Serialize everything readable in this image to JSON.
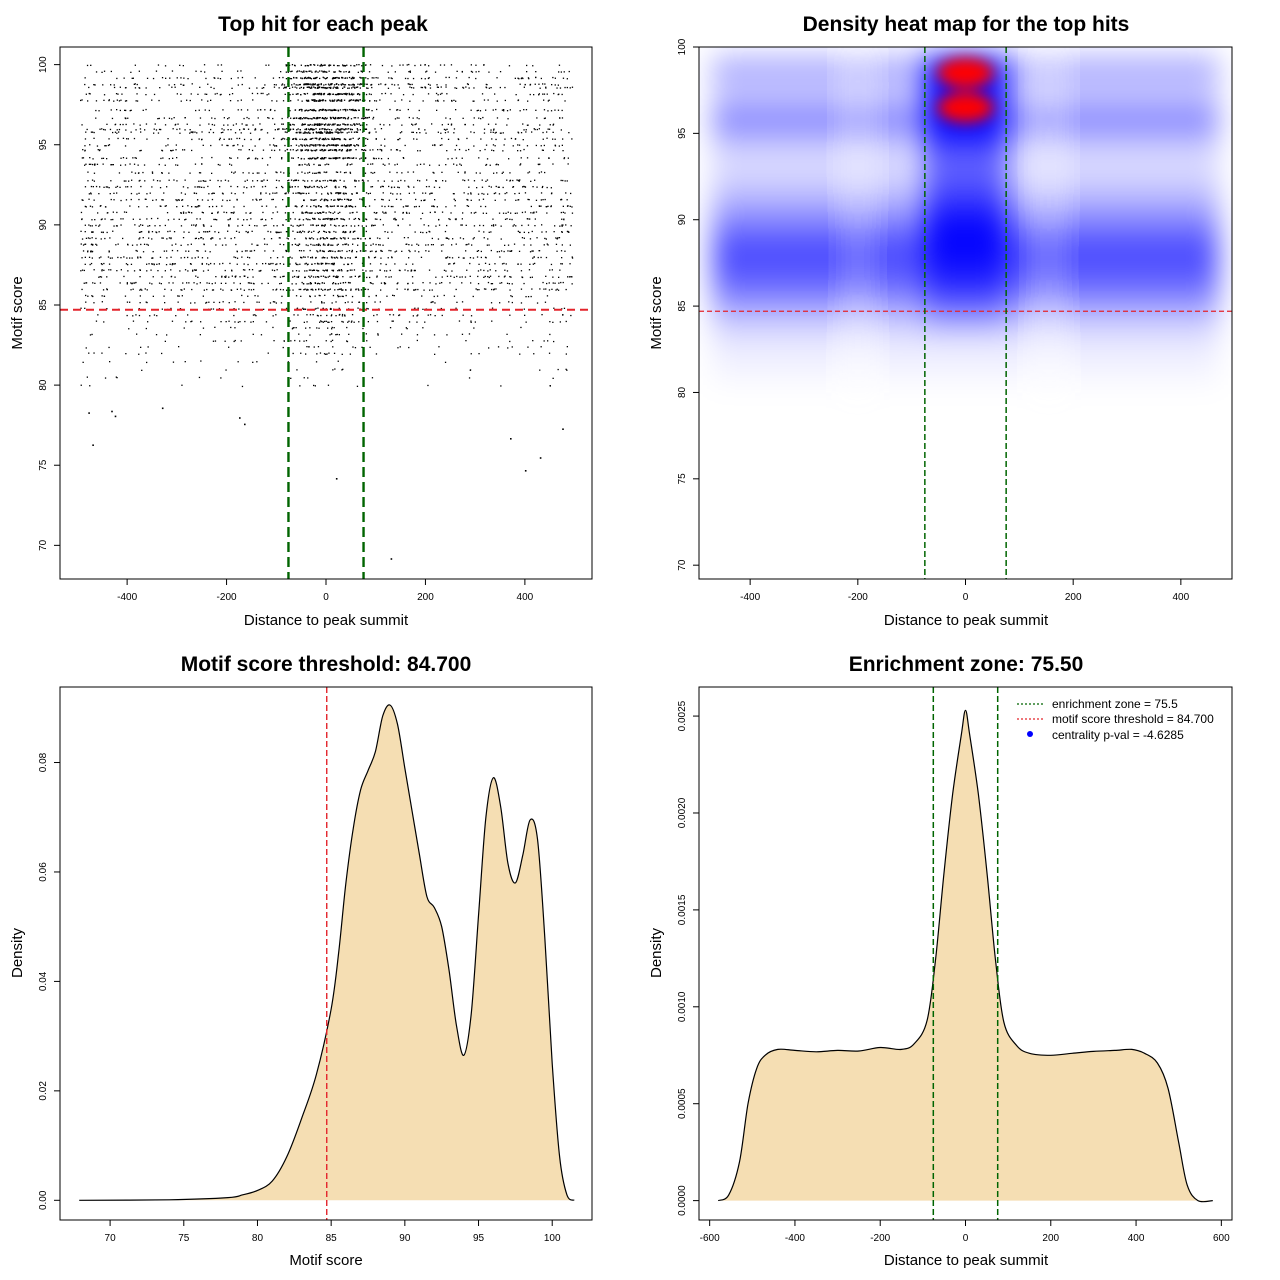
{
  "colors": {
    "threshold_line": "#e3242b",
    "zone_line": "#006400",
    "density_fill": "#f5deb3",
    "point": "#000000",
    "heat_low": "#ffffff",
    "heat_mid": "#0000ff",
    "heat_high": "#ff0000"
  },
  "chart_data": [
    {
      "id": "scatter",
      "type": "scatter",
      "title": "Top hit for each peak",
      "xlabel": "Distance to peak summit",
      "ylabel": "Motif score",
      "xlim": [
        -535,
        535
      ],
      "ylim": [
        67.9,
        101.1
      ],
      "xticks": [
        -400,
        -200,
        0,
        200,
        400
      ],
      "yticks": [
        70,
        75,
        80,
        85,
        90,
        95,
        100
      ],
      "threshold": 84.7,
      "zone": [
        -75.5,
        75.5
      ],
      "x_range": [
        -495,
        495
      ],
      "score_levels": [
        100,
        99.6,
        99.2,
        98.8,
        98.6,
        98.2,
        97.8,
        97.2,
        96.7,
        96.3,
        96.0,
        95.8,
        95.4,
        95.0,
        94.7,
        94.2,
        93.8,
        93.3,
        92.8,
        92.4,
        92.0,
        91.6,
        91.2,
        90.8,
        90.4,
        90.0,
        89.6,
        89.2,
        88.8,
        88.4,
        88.0,
        87.6,
        87.2,
        86.8,
        86.4,
        86.0,
        85.6,
        85.2,
        84.8,
        84.4,
        84.0,
        83.6,
        83.2,
        82.8,
        82.4,
        82.0,
        81.5,
        81.0,
        80.5,
        80.0,
        79.0,
        78.3,
        77.5,
        76.5,
        75.5,
        74.7,
        74.2,
        69.2
      ],
      "outliers": [
        [
          -470,
          76.3
        ],
        [
          -478,
          78.3
        ],
        [
          -432,
          78.4
        ],
        [
          -425,
          78.1
        ],
        [
          -330,
          78.6
        ],
        [
          -175,
          78.0
        ],
        [
          -165,
          77.6
        ],
        [
          20,
          74.2
        ],
        [
          130,
          69.2
        ],
        [
          370,
          76.7
        ],
        [
          400,
          74.7
        ],
        [
          430,
          75.5
        ],
        [
          475,
          77.3
        ]
      ]
    },
    {
      "id": "heatmap",
      "type": "heatmap",
      "title": "Density heat map for the top hits",
      "xlabel": "Distance to peak summit",
      "ylabel": "Motif score",
      "xlim": [
        -495,
        495
      ],
      "ylim": [
        69.2,
        100.0
      ],
      "xticks": [
        -400,
        -200,
        0,
        200,
        400
      ],
      "yticks": [
        70,
        75,
        80,
        85,
        90,
        95,
        100
      ],
      "threshold": 84.7,
      "zone": [
        -75.5,
        75.5
      ],
      "hotspots": [
        [
          0,
          98.5
        ],
        [
          0,
          96.5
        ]
      ]
    },
    {
      "id": "score-density",
      "type": "area",
      "title": "Motif score threshold: 84.700",
      "xlabel": "Motif score",
      "ylabel": "Density",
      "xlim": [
        66.6,
        102.7
      ],
      "ylim": [
        -0.0036,
        0.0938
      ],
      "xticks": [
        70,
        75,
        80,
        85,
        90,
        95,
        100
      ],
      "yticks": [
        0.0,
        0.02,
        0.04,
        0.06,
        0.08
      ],
      "ytick_labels": [
        "0.00",
        "0.02",
        "0.04",
        "0.06",
        "0.08"
      ],
      "threshold": 84.7,
      "points": [
        [
          67.9,
          0.0
        ],
        [
          74.0,
          0.0001
        ],
        [
          78.0,
          0.0005
        ],
        [
          79.0,
          0.001
        ],
        [
          80.0,
          0.0018
        ],
        [
          81.0,
          0.0035
        ],
        [
          82.0,
          0.008
        ],
        [
          83.0,
          0.015
        ],
        [
          84.0,
          0.023
        ],
        [
          85.0,
          0.035
        ],
        [
          85.5,
          0.045
        ],
        [
          86.0,
          0.058
        ],
        [
          86.5,
          0.068
        ],
        [
          87.0,
          0.075
        ],
        [
          87.5,
          0.0785
        ],
        [
          88.0,
          0.082
        ],
        [
          88.5,
          0.0885
        ],
        [
          89.0,
          0.0905
        ],
        [
          89.5,
          0.087
        ],
        [
          90.0,
          0.079
        ],
        [
          90.5,
          0.071
        ],
        [
          91.0,
          0.063
        ],
        [
          91.5,
          0.0555
        ],
        [
          92.0,
          0.0535
        ],
        [
          92.5,
          0.05
        ],
        [
          93.0,
          0.042
        ],
        [
          93.5,
          0.032
        ],
        [
          94.0,
          0.0265
        ],
        [
          94.5,
          0.034
        ],
        [
          95.0,
          0.052
        ],
        [
          95.5,
          0.07
        ],
        [
          96.0,
          0.0772
        ],
        [
          96.5,
          0.072
        ],
        [
          97.0,
          0.0615
        ],
        [
          97.5,
          0.058
        ],
        [
          98.0,
          0.063
        ],
        [
          98.5,
          0.0695
        ],
        [
          99.0,
          0.066
        ],
        [
          99.5,
          0.048
        ],
        [
          100.0,
          0.025
        ],
        [
          100.5,
          0.008
        ],
        [
          101.0,
          0.001
        ],
        [
          101.5,
          0.0
        ]
      ]
    },
    {
      "id": "distance-density",
      "type": "area",
      "title": "Enrichment zone: 75.50",
      "xlabel": "Distance to peak summit",
      "ylabel": "Density",
      "xlim": [
        -625,
        625
      ],
      "ylim": [
        -0.0001,
        0.00265
      ],
      "xticks": [
        -600,
        -400,
        -200,
        0,
        200,
        400,
        600
      ],
      "yticks": [
        0.0,
        0.0005,
        0.001,
        0.0015,
        0.002,
        0.0025
      ],
      "ytick_labels": [
        "0.0000",
        "0.0005",
        "0.0010",
        "0.0015",
        "0.0020",
        "0.0025"
      ],
      "zone": [
        -75.5,
        75.5
      ],
      "points": [
        [
          -580,
          0.0
        ],
        [
          -555,
          3e-05
        ],
        [
          -530,
          0.0002
        ],
        [
          -510,
          0.0005
        ],
        [
          -490,
          0.00068
        ],
        [
          -470,
          0.00075
        ],
        [
          -440,
          0.00078
        ],
        [
          -400,
          0.000775
        ],
        [
          -350,
          0.000768
        ],
        [
          -300,
          0.000775
        ],
        [
          -250,
          0.000772
        ],
        [
          -200,
          0.00079
        ],
        [
          -150,
          0.00078
        ],
        [
          -120,
          0.00081
        ],
        [
          -90,
          0.00093
        ],
        [
          -70,
          0.00125
        ],
        [
          -50,
          0.0017
        ],
        [
          -30,
          0.0021
        ],
        [
          -10,
          0.0024
        ],
        [
          0,
          0.00253
        ],
        [
          10,
          0.0024
        ],
        [
          30,
          0.0021
        ],
        [
          50,
          0.0017
        ],
        [
          70,
          0.00125
        ],
        [
          90,
          0.00092
        ],
        [
          120,
          0.0008
        ],
        [
          150,
          0.00076
        ],
        [
          200,
          0.00075
        ],
        [
          250,
          0.00076
        ],
        [
          300,
          0.00077
        ],
        [
          350,
          0.000775
        ],
        [
          390,
          0.00078
        ],
        [
          420,
          0.00076
        ],
        [
          450,
          0.00071
        ],
        [
          475,
          0.00058
        ],
        [
          500,
          0.0003
        ],
        [
          520,
          8e-05
        ],
        [
          545,
          0.0
        ],
        [
          580,
          0.0
        ]
      ],
      "legend": [
        {
          "label": "enrichment zone = 75.5",
          "kind": "dotted-line",
          "color": "#006400"
        },
        {
          "label": "motif score threshold = 84.700",
          "kind": "dotted-line",
          "color": "#e3242b"
        },
        {
          "label": "centrality p-val = -4.6285",
          "kind": "dot",
          "color": "#0000ff"
        }
      ]
    }
  ]
}
